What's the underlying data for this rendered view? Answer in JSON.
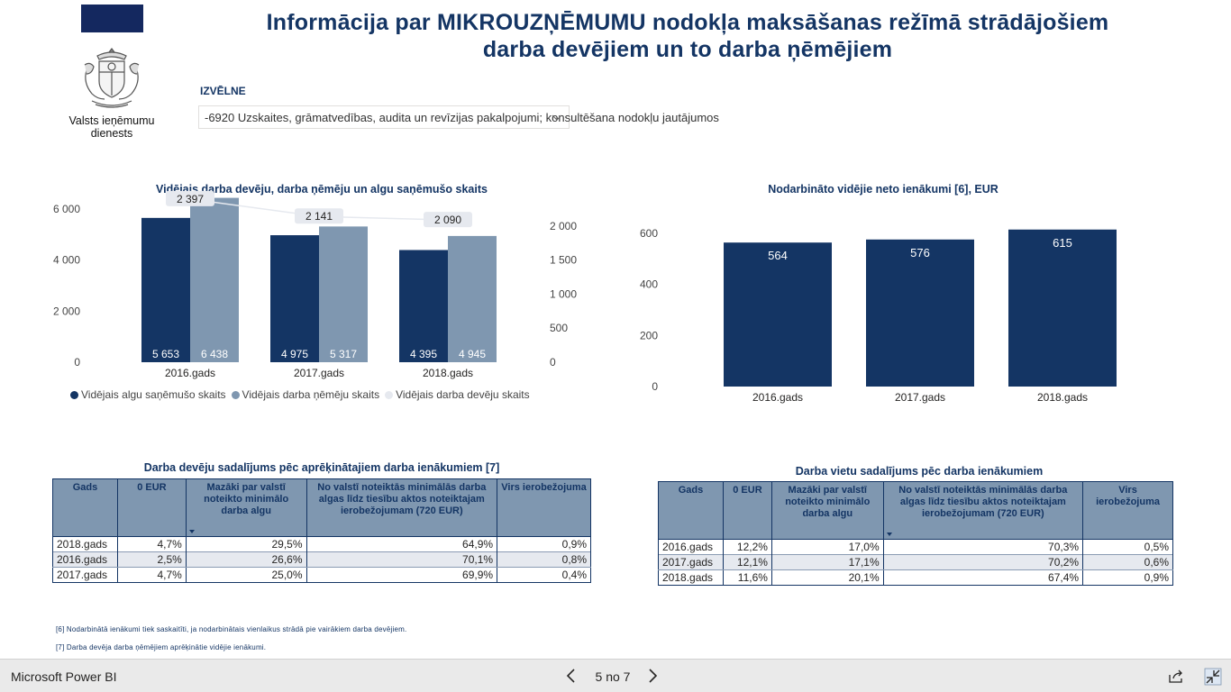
{
  "header": {
    "title_line1": "Informācija par MIKROUZŅĒMUMU nodokļa maksāšanas režīmā strādājošiem",
    "title_line2": "darba devējiem un to darba ņēmējiem",
    "logo_text_line1": "Valsts ieņēmumu",
    "logo_text_line2": "dienests",
    "logo_icon": "latvia-coat-of-arms-icon",
    "brand_color": "#143564"
  },
  "slicer": {
    "label": "IZVĒLNE",
    "value": "-6920 Uzskaites, grāmatvedības, audita un revīzijas pakalpojumi; konsultēšana nodokļu jautājumos"
  },
  "chart_left": {
    "chart_data": {
      "type": "bar",
      "title": "Vidējais darba devēju, darba ņēmēju un algu saņēmušo skaits",
      "categories": [
        "2016.gads",
        "2017.gads",
        "2018.gads"
      ],
      "series": [
        {
          "name": "Vidējais algu saņēmušo skaits",
          "values": [
            5653,
            4975,
            4395
          ],
          "labels": [
            "5 653",
            "4 975",
            "4 395"
          ],
          "color": "#143564",
          "axis": "left"
        },
        {
          "name": "Vidējais darba ņēmēju skaits",
          "values": [
            6438,
            5317,
            4945
          ],
          "labels": [
            "6 438",
            "5 317",
            "4 945"
          ],
          "color": "#7f97b0",
          "axis": "left"
        },
        {
          "name": "Vidējais darba devēju skaits",
          "values": [
            2397,
            2141,
            2090
          ],
          "labels": [
            "2 397",
            "2 141",
            "2 090"
          ],
          "color": "#e6e9ef",
          "type": "line",
          "axis": "right"
        }
      ],
      "y_left": {
        "ylim": [
          0,
          6000
        ],
        "ticks": [
          0,
          2000,
          4000,
          6000
        ],
        "tick_labels": [
          "0",
          "2 000",
          "4 000",
          "6 000"
        ]
      },
      "y_right": {
        "ylim": [
          0,
          2250
        ],
        "ticks": [
          0,
          500,
          1000,
          1500,
          2000
        ],
        "tick_labels": [
          "0",
          "500",
          "1 000",
          "1 500",
          "2 000"
        ]
      },
      "grid": false,
      "legend": "bottom"
    }
  },
  "chart_right": {
    "chart_data": {
      "type": "bar",
      "title": "Nodarbināto vidējie neto ienākumi [6], EUR",
      "categories": [
        "2016.gads",
        "2017.gads",
        "2018.gads"
      ],
      "values": [
        564,
        576,
        615
      ],
      "color": "#143564",
      "ylim": [
        0,
        600
      ],
      "ticks": [
        0,
        200,
        400,
        600
      ],
      "tick_labels": [
        "0",
        "200",
        "400",
        "600"
      ],
      "grid": false
    }
  },
  "table_left": {
    "title": "Darba devēju sadalījums pēc aprēķinātajiem darba ienākumiem [7]",
    "headers": [
      "Gads",
      "0 EUR",
      "Mazāki par valstī noteikto minimālo darba algu",
      "No valstī noteiktās minimālās darba algas līdz tiesību aktos noteiktajam ierobežojumam (720 EUR)",
      "Virs ierobežojuma"
    ],
    "rows": [
      [
        "2018.gads",
        "4,7%",
        "29,5%",
        "64,9%",
        "0,9%"
      ],
      [
        "2016.gads",
        "2,5%",
        "26,6%",
        "70,1%",
        "0,8%"
      ],
      [
        "2017.gads",
        "4,7%",
        "25,0%",
        "69,9%",
        "0,4%"
      ]
    ]
  },
  "table_right": {
    "title": "Darba vietu sadalījums pēc darba ienākumiem",
    "headers": [
      "Gads",
      "0 EUR",
      "Mazāki par valstī noteikto minimālo darba algu",
      "No valstī noteiktās minimālās darba algas līdz tiesību aktos noteiktajam ierobežojumam (720 EUR)",
      "Virs ierobežojuma"
    ],
    "rows": [
      [
        "2016.gads",
        "12,2%",
        "17,0%",
        "70,3%",
        "0,5%"
      ],
      [
        "2017.gads",
        "12,1%",
        "17,1%",
        "70,2%",
        "0,6%"
      ],
      [
        "2018.gads",
        "11,6%",
        "20,1%",
        "67,4%",
        "0,9%"
      ]
    ]
  },
  "footnotes": {
    "note6": "[6] Nodarbinātā ienākumi tiek saskaitīti, ja nodarbinātais vienlaikus strādā pie vairākiem darba devējiem.",
    "note7": "[7] Darba devēja darba ņēmējiem aprēķinātie vidējie ienākumi."
  },
  "statusbar": {
    "app_name": "Microsoft Power BI",
    "page_indicator": "5 no 7"
  }
}
